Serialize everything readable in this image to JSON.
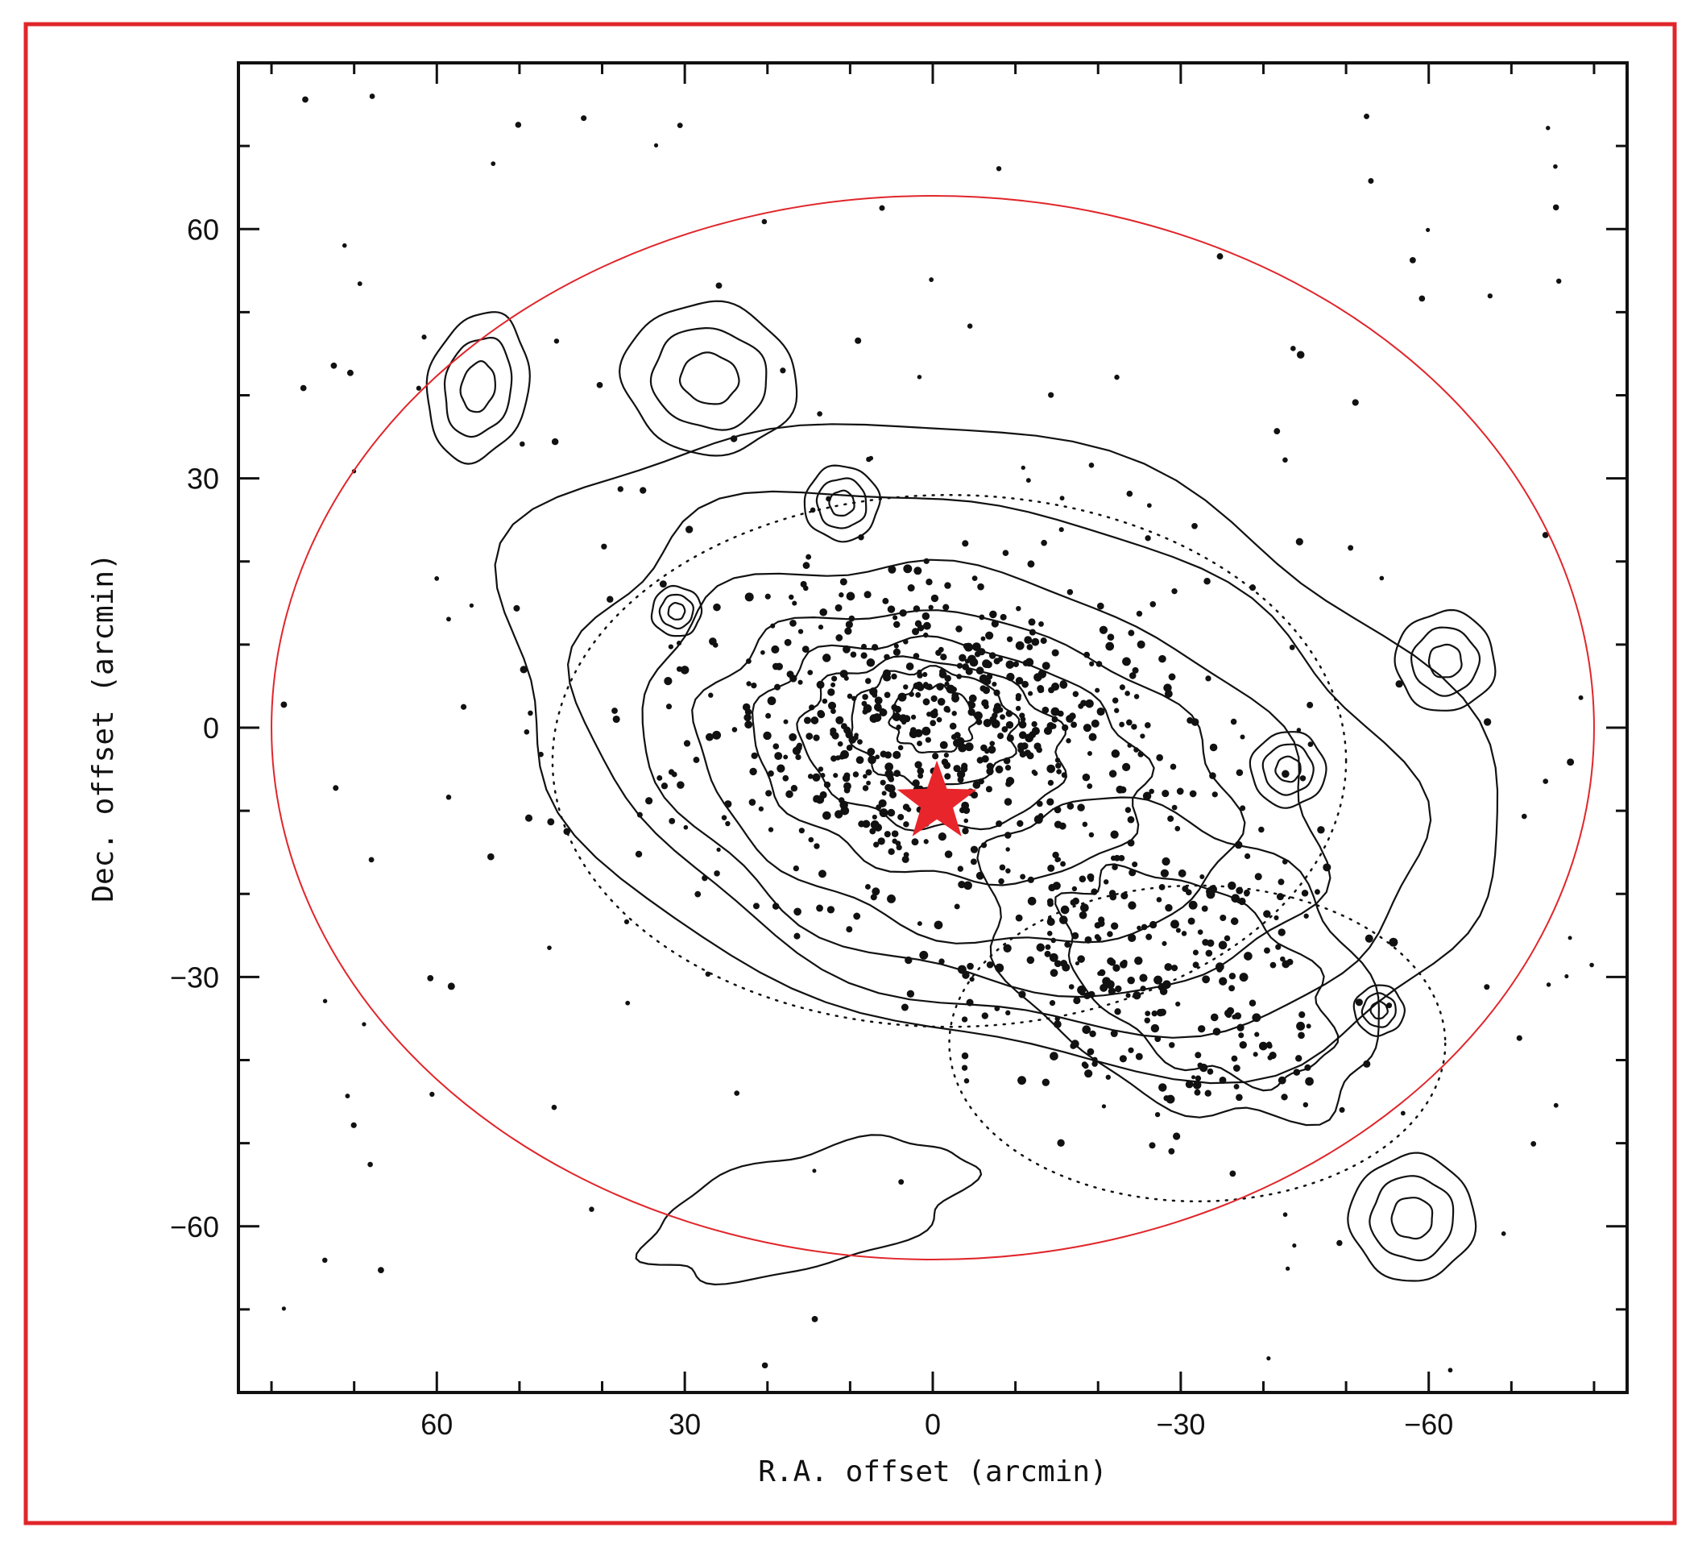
{
  "chart_data": {
    "type": "scatter",
    "title": "",
    "xlabel": "R.A. offset (arcmin)",
    "ylabel": "Dec. offset (arcmin)",
    "xlim": [
      84,
      -84
    ],
    "ylim": [
      -80,
      80
    ],
    "x_ticks": [
      60,
      30,
      0,
      -30,
      -60
    ],
    "y_ticks": [
      60,
      30,
      0,
      -30,
      -60
    ],
    "x_tick_labels": [
      "60",
      "30",
      "0",
      "−30",
      "−60"
    ],
    "y_tick_labels": [
      "60",
      "30",
      "0",
      "−30",
      "−60"
    ],
    "grid": false,
    "colors": {
      "frame": "#e0262b",
      "ellipse": "#e0262b",
      "star": "#e8252b",
      "ink": "#111111"
    },
    "marker": {
      "x": -0.5,
      "y": -9,
      "shape": "star",
      "color": "#e8252b"
    },
    "ellipse": {
      "center": [
        0,
        0
      ],
      "semi_axis_ra": 80,
      "semi_axis_dec": 64
    }
  }
}
